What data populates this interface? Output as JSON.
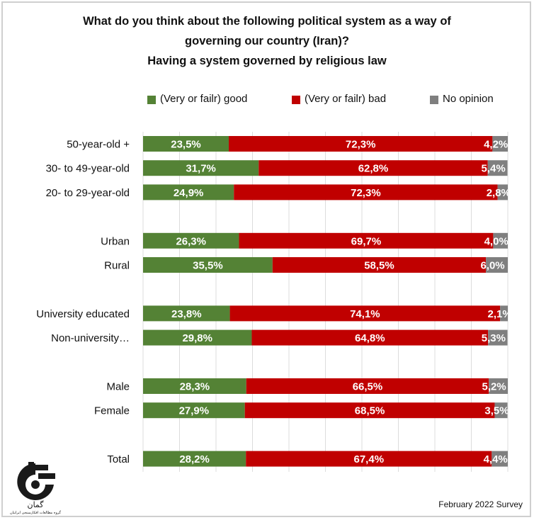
{
  "chart_data": {
    "type": "bar",
    "orientation": "horizontal",
    "stacked": true,
    "title": "What do you think about the following political system as a way of governing our country (Iran)? Having a system governed by religious law",
    "title_lines": [
      "What do you think about the following political system as a way of",
      "governing our country (Iran)?",
      "Having a system governed by religious law"
    ],
    "xlabel": "",
    "ylabel": "",
    "xlim": [
      0,
      100
    ],
    "grid": true,
    "legend_position": "top",
    "categories": [
      "50-year-old +",
      "30- to 49-year-old",
      "20- to 29-year-old",
      "",
      "Urban",
      "Rural",
      "",
      "University educated",
      "Non-university…",
      "",
      "Male",
      "Female",
      "",
      "Total"
    ],
    "series": [
      {
        "name": "(Very or failr) good",
        "color": "#548235",
        "values": [
          23.5,
          31.7,
          24.9,
          null,
          26.3,
          35.5,
          null,
          23.8,
          29.8,
          null,
          28.3,
          27.9,
          null,
          28.2
        ],
        "labels": [
          "23,5%",
          "31,7%",
          "24,9%",
          "",
          "26,3%",
          "35,5%",
          "",
          "23,8%",
          "29,8%",
          "",
          "28,3%",
          "27,9%",
          "",
          "28,2%"
        ]
      },
      {
        "name": "(Very or failr) bad",
        "color": "#c00000",
        "values": [
          72.3,
          62.8,
          72.3,
          null,
          69.7,
          58.5,
          null,
          74.1,
          64.8,
          null,
          66.5,
          68.5,
          null,
          67.4
        ],
        "labels": [
          "72,3%",
          "62,8%",
          "72,3%",
          "",
          "69,7%",
          "58,5%",
          "",
          "74,1%",
          "64,8%",
          "",
          "66,5%",
          "68,5%",
          "",
          "67,4%"
        ]
      },
      {
        "name": "No opinion",
        "color": "#7f7f7f",
        "values": [
          4.2,
          5.4,
          2.8,
          null,
          4.0,
          6.0,
          null,
          2.1,
          5.3,
          null,
          5.2,
          3.5,
          null,
          4.4
        ],
        "labels": [
          "4,2%",
          "5,4%",
          "2,8%",
          "",
          "4,0%",
          "6,0%",
          "",
          "2,1%",
          "5,3%",
          "",
          "5,2%",
          "3,5%",
          "",
          "4,4%"
        ]
      }
    ]
  },
  "footer": {
    "note": "February 2022 Survey"
  },
  "logo": {
    "name": "Gamaan logo",
    "text_persian": "گمان",
    "subtitle_persian": "گروه مطالعات افکارسنجی ایرانیان"
  },
  "colors": {
    "good": "#548235",
    "bad": "#c00000",
    "no_opinion": "#7f7f7f",
    "grid": "#d9d9d9"
  }
}
